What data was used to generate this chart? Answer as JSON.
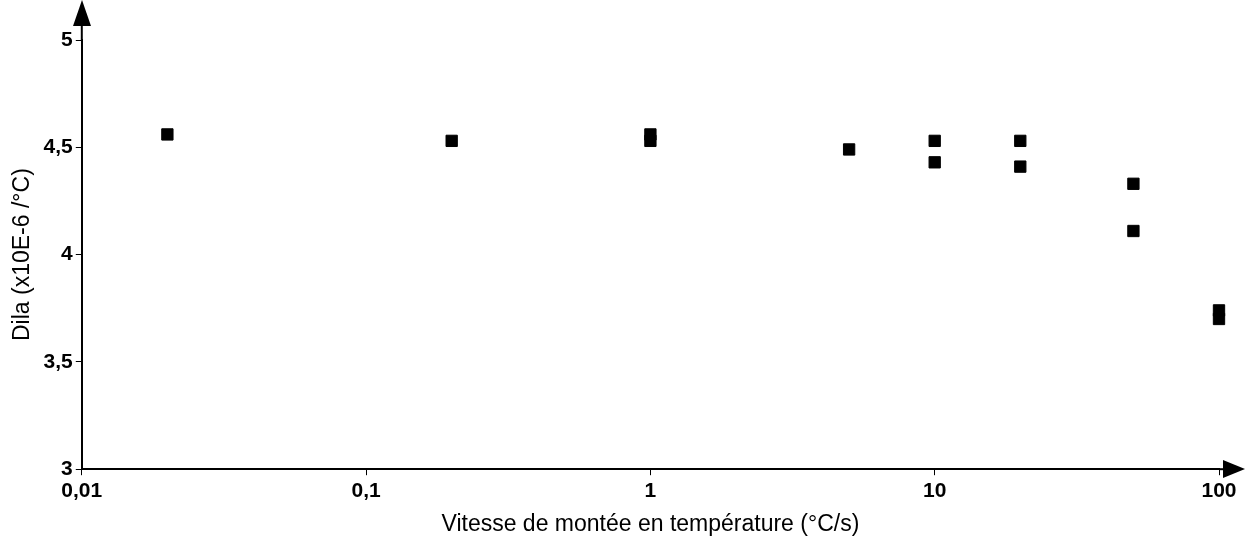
{
  "chart_data": {
    "type": "scatter",
    "xlabel": "Vitesse de montée en température (°C/s)",
    "ylabel": "Dila (x10E-6 /°C)",
    "x": [
      0.02,
      0.2,
      1,
      1,
      5,
      10,
      10,
      20,
      20,
      50,
      50,
      100,
      100
    ],
    "series": [
      {
        "color": "#000000",
        "values": [
          4.56,
          4.53,
          4.56,
          4.53,
          4.49,
          4.53,
          4.43,
          4.53,
          4.41,
          4.33,
          4.11,
          3.74,
          3.7
        ]
      }
    ],
    "log": "x",
    "marker": "square",
    "grid": false,
    "legend": false,
    "xlim": [
      0.01,
      100
    ],
    "xticks": [
      {
        "value": 0.01,
        "label": "0,01"
      },
      {
        "value": 0.1,
        "label": "0,1"
      },
      1,
      10,
      100
    ],
    "ylim": [
      3,
      5
    ],
    "yticks": [
      3,
      {
        "value": 3.5,
        "label": "3,5"
      },
      4,
      {
        "value": 4.5,
        "label": "4,5"
      },
      5
    ]
  }
}
